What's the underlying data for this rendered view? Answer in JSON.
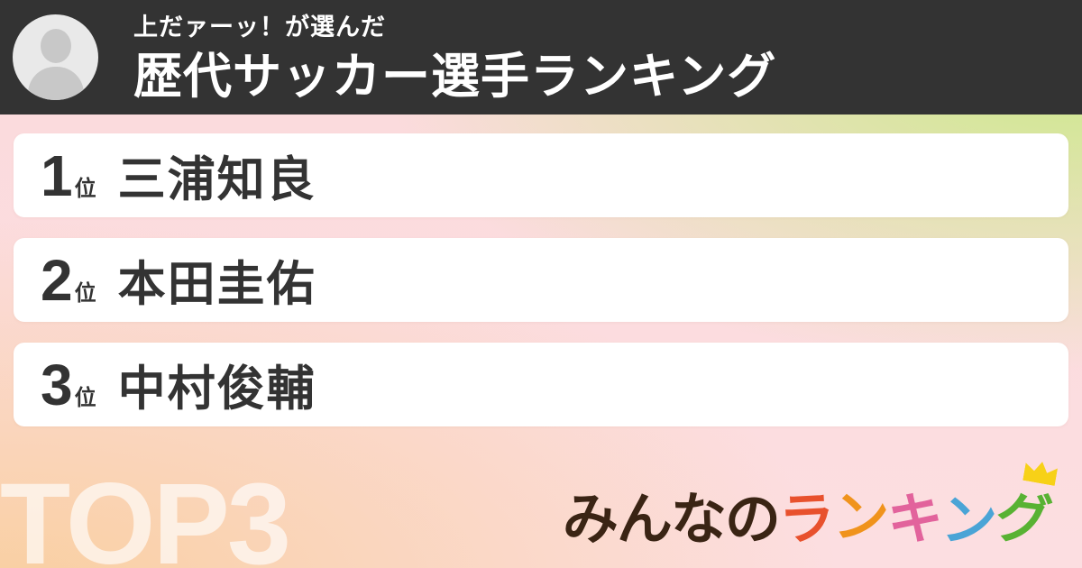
{
  "header": {
    "subtitle": "上だァーッ！が選んだ",
    "title": "歴代サッカー選手ランキング",
    "avatar_icon": "person-icon",
    "bg_color": "#333333"
  },
  "ranking": {
    "items": [
      {
        "rank": "1",
        "unit": "位",
        "name": "三浦知良"
      },
      {
        "rank": "2",
        "unit": "位",
        "name": "本田圭佑"
      },
      {
        "rank": "3",
        "unit": "位",
        "name": "中村俊輔"
      }
    ]
  },
  "footer": {
    "watermark": "TOP3",
    "logo": {
      "full_name": "みんなのランキング",
      "crown_icon": "crown-icon",
      "crown_color": "#f7d117",
      "chars": [
        {
          "text": "みんなの",
          "color": "#3a2414"
        },
        {
          "text": "ラ",
          "color": "#e8512d"
        },
        {
          "text": "ン",
          "color": "#f0931c"
        },
        {
          "text": "キ",
          "color": "#e2639c"
        },
        {
          "text": "ン",
          "color": "#4aa4d6"
        },
        {
          "text": "グ",
          "color": "#58b233"
        }
      ]
    }
  },
  "colors": {
    "header_bg": "#333333",
    "card_bg": "#ffffff",
    "card_text": "#333333",
    "bg_top_left": "#fbdadc",
    "bg_top_right": "#cde98c",
    "bg_bottom_left": "#f9cfa0",
    "bg_bottom_right": "#fcdee1",
    "watermark_text": "rgba(255,255,255,0.65)"
  }
}
